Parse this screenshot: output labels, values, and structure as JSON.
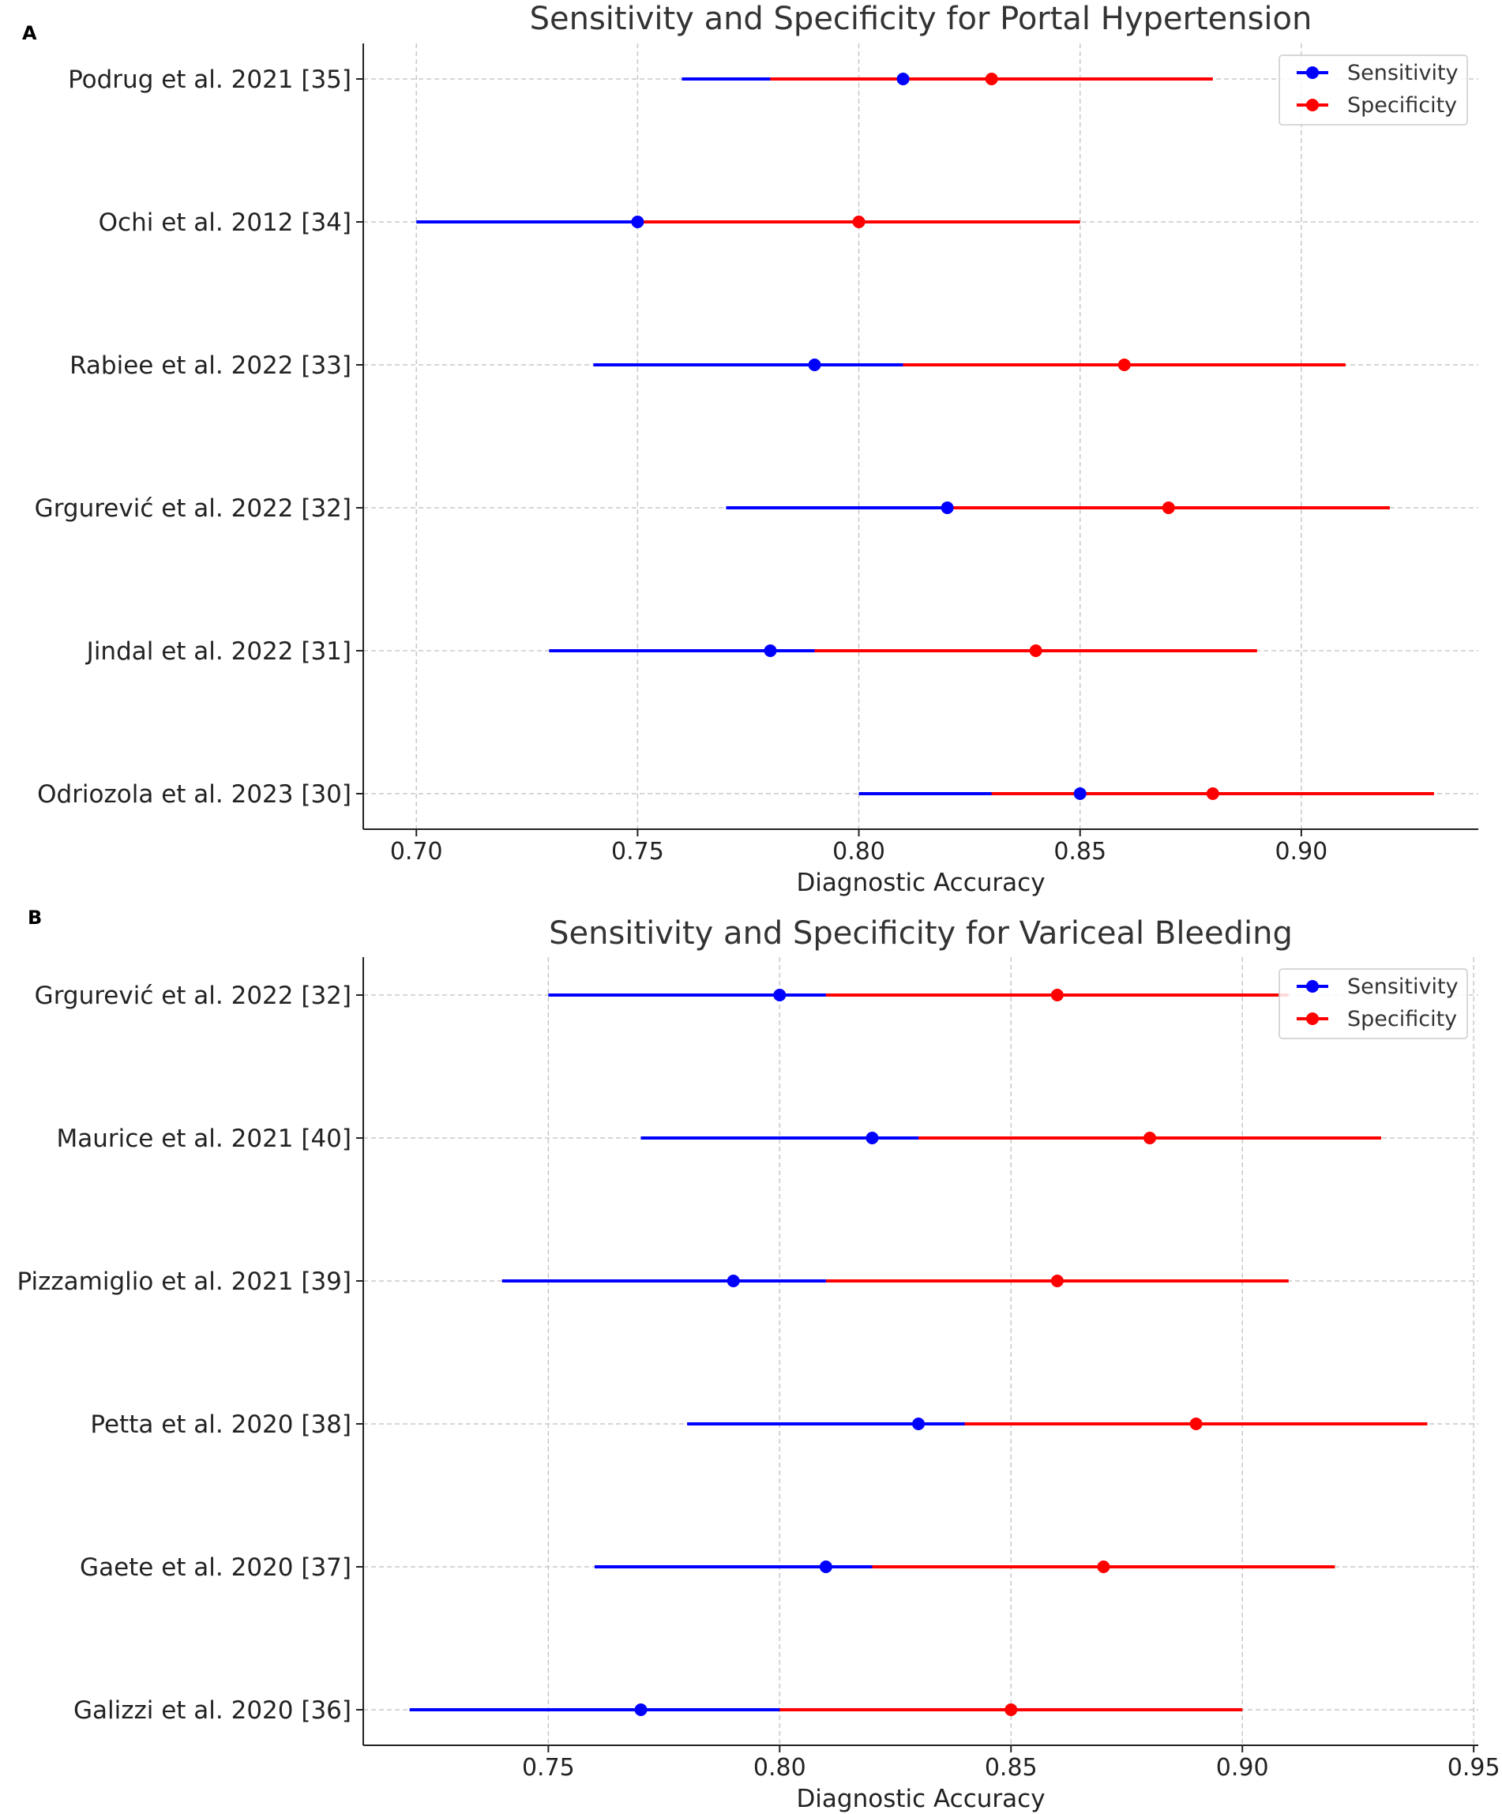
{
  "chart_data": [
    {
      "panel": "A",
      "type": "forest",
      "title": "Sensitivity and Specificity for Portal Hypertension",
      "xlabel": "Diagnostic Accuracy",
      "xlim": [
        0.688,
        0.94
      ],
      "xticks": [
        0.7,
        0.75,
        0.8,
        0.85,
        0.9
      ],
      "xtick_labels": [
        "0.70",
        "0.75",
        "0.80",
        "0.85",
        "0.90"
      ],
      "grid": true,
      "legend_position": "top-right",
      "categories": [
        "Podrug et al. 2021 [35]",
        "Ochi et al. 2012 [34]",
        "Rabiee et al. 2022 [33]",
        "Grgurević et al. 2022 [32]",
        "Jindal et al. 2022 [31]",
        "Odriozola et al. 2023 [30]"
      ],
      "series": [
        {
          "name": "Sensitivity",
          "color": "#0000ff",
          "values": [
            0.81,
            0.75,
            0.79,
            0.82,
            0.78,
            0.85
          ],
          "lower": [
            0.76,
            0.7,
            0.74,
            0.77,
            0.73,
            0.8
          ],
          "upper": [
            0.86,
            0.8,
            0.84,
            0.87,
            0.83,
            0.9
          ]
        },
        {
          "name": "Specificity",
          "color": "#ff0000",
          "values": [
            0.83,
            0.8,
            0.86,
            0.87,
            0.84,
            0.88
          ],
          "lower": [
            0.78,
            0.75,
            0.81,
            0.82,
            0.79,
            0.83
          ],
          "upper": [
            0.88,
            0.85,
            0.91,
            0.92,
            0.89,
            0.93
          ]
        }
      ]
    },
    {
      "panel": "B",
      "type": "forest",
      "title": "Sensitivity and Specificity for Variceal Bleeding",
      "xlabel": "Diagnostic Accuracy",
      "xlim": [
        0.71,
        0.951
      ],
      "xticks": [
        0.75,
        0.8,
        0.85,
        0.9,
        0.95
      ],
      "xtick_labels": [
        "0.75",
        "0.80",
        "0.85",
        "0.90",
        "0.95"
      ],
      "grid": true,
      "legend_position": "top-right",
      "categories": [
        "Grgurević et al. 2022 [32]",
        "Maurice et al. 2021 [40]",
        "Pizzamiglio et al. 2021 [39]",
        "Petta et al. 2020 [38]",
        "Gaete et al. 2020 [37]",
        "Galizzi et al. 2020 [36]"
      ],
      "series": [
        {
          "name": "Sensitivity",
          "color": "#0000ff",
          "values": [
            0.8,
            0.82,
            0.79,
            0.83,
            0.81,
            0.77
          ],
          "lower": [
            0.75,
            0.77,
            0.74,
            0.78,
            0.76,
            0.72
          ],
          "upper": [
            0.85,
            0.87,
            0.84,
            0.88,
            0.86,
            0.82
          ]
        },
        {
          "name": "Specificity",
          "color": "#ff0000",
          "values": [
            0.86,
            0.88,
            0.86,
            0.89,
            0.87,
            0.85
          ],
          "lower": [
            0.81,
            0.83,
            0.81,
            0.84,
            0.82,
            0.8
          ],
          "upper": [
            0.91,
            0.93,
            0.91,
            0.94,
            0.92,
            0.9
          ]
        }
      ]
    }
  ]
}
